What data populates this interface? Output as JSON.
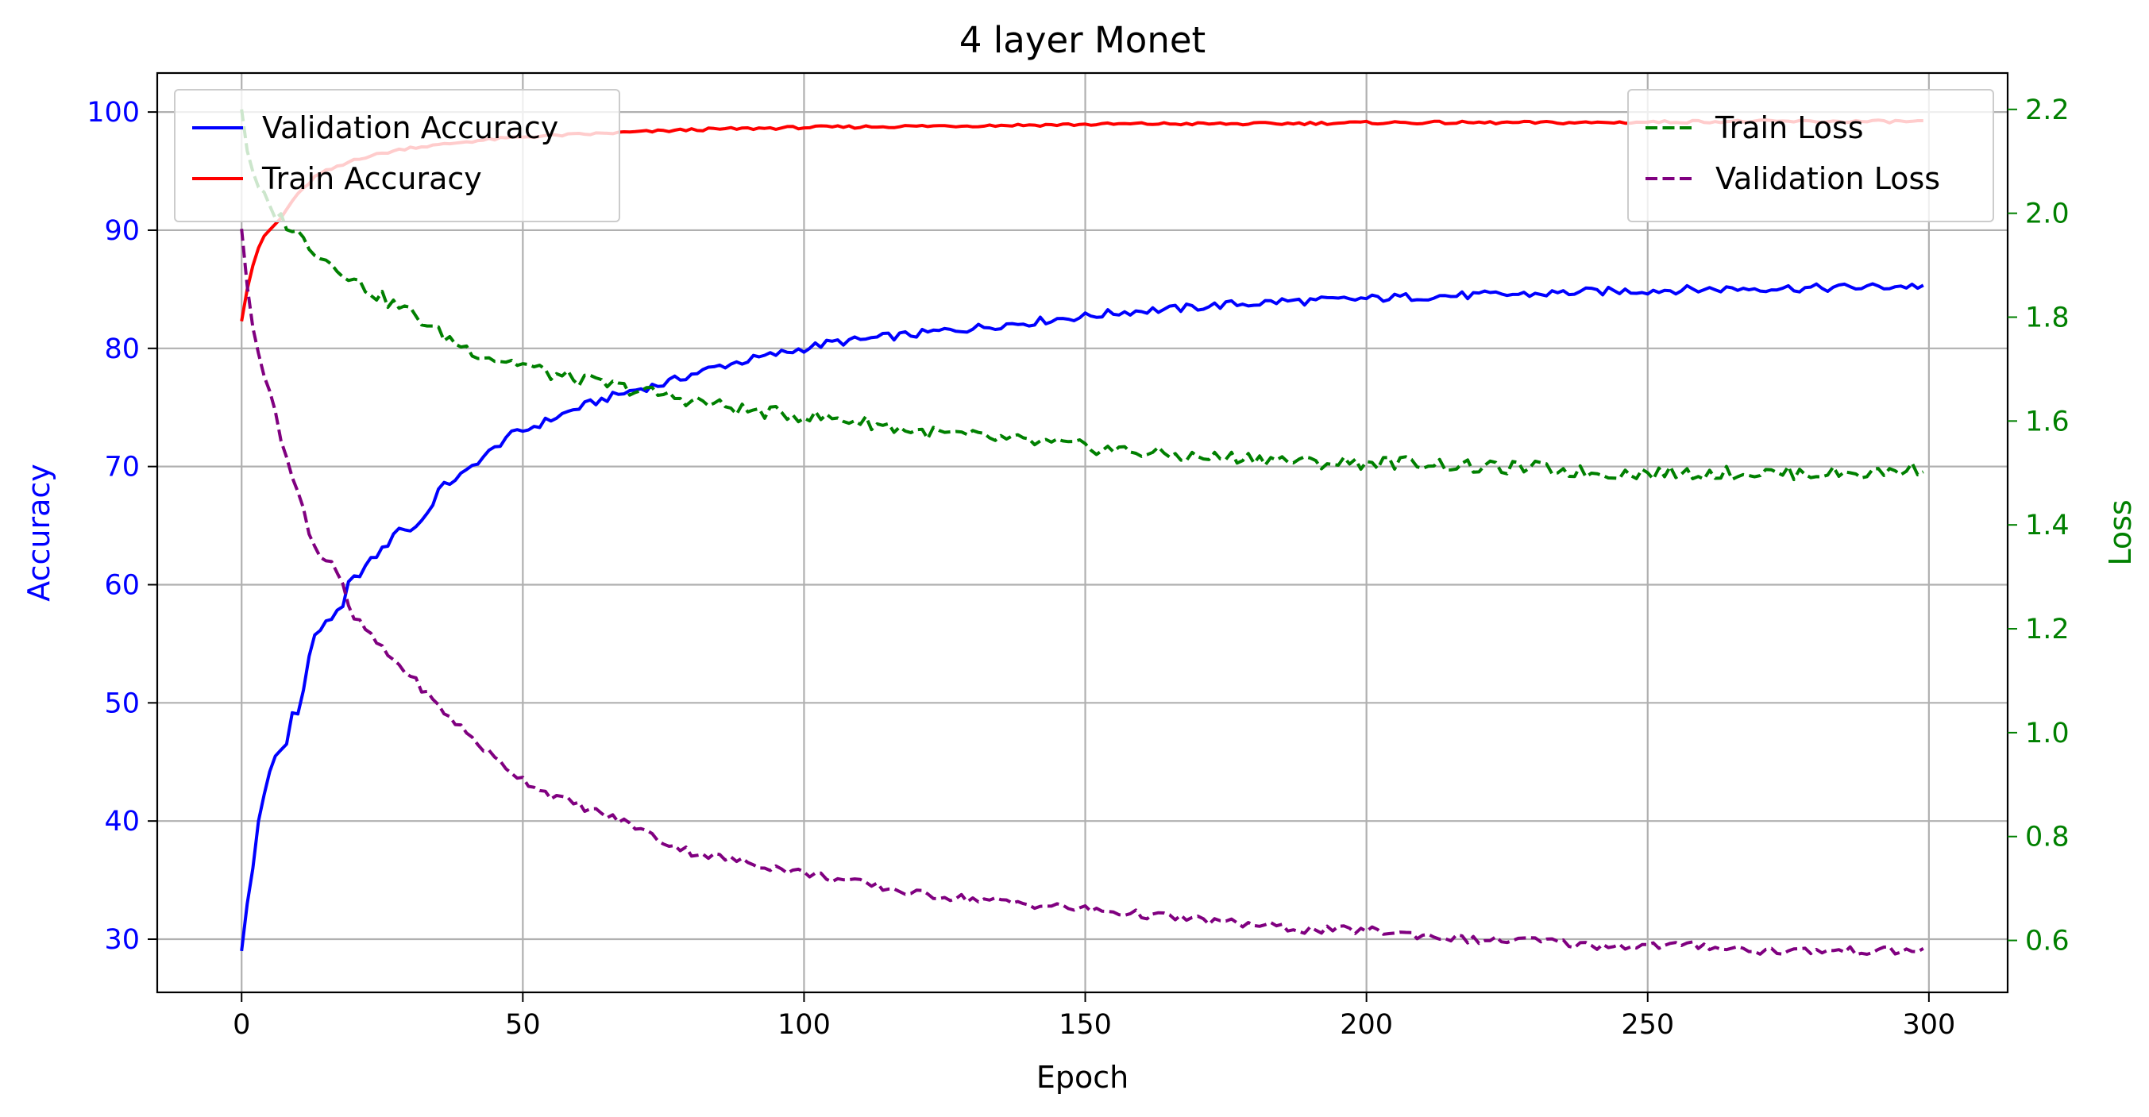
{
  "chart_data": {
    "type": "line",
    "title": "4 layer Monet",
    "xlabel": "Epoch",
    "ylabel_left": "Accuracy",
    "ylabel_right": "Loss",
    "xlim": [
      -15,
      314
    ],
    "ylim_left": [
      25.5,
      103.3
    ],
    "ylim_right": [
      0.5,
      2.27
    ],
    "x_ticks": [
      0,
      50,
      100,
      150,
      200,
      250,
      300
    ],
    "y_ticks_left": [
      30,
      40,
      50,
      60,
      70,
      80,
      90,
      100
    ],
    "y_ticks_right": [
      0.6,
      0.8,
      1.0,
      1.2,
      1.4,
      1.6,
      1.8,
      2.0,
      2.2
    ],
    "x_tick_labels": [
      "0",
      "50",
      "100",
      "150",
      "200",
      "250",
      "300"
    ],
    "y_tick_labels_left": [
      "30",
      "40",
      "50",
      "60",
      "70",
      "80",
      "90",
      "100"
    ],
    "y_tick_labels_right": [
      "0.6",
      "0.8",
      "1.0",
      "1.2",
      "1.4",
      "1.6",
      "1.8",
      "2.0",
      "2.2"
    ],
    "grid": true,
    "legend_left_placement": "upper left",
    "legend_right_placement": "upper right",
    "axis_left_color": "#0000ff",
    "axis_right_color": "#008000",
    "series_keypoints": [
      {
        "name": "Validation Accuracy",
        "axis": "left",
        "color": "#0000ff",
        "style": "solid",
        "points": [
          [
            0,
            29
          ],
          [
            1,
            33
          ],
          [
            2,
            36
          ],
          [
            3,
            40
          ],
          [
            4,
            42
          ],
          [
            5,
            44
          ],
          [
            6,
            45.5
          ],
          [
            8,
            46.5
          ],
          [
            9,
            49.5
          ],
          [
            10,
            49
          ],
          [
            11,
            51
          ],
          [
            12,
            54
          ],
          [
            13,
            55.5
          ],
          [
            15,
            57
          ],
          [
            17,
            57.5
          ],
          [
            18,
            58
          ],
          [
            19,
            60
          ],
          [
            21,
            61
          ],
          [
            23,
            62
          ],
          [
            25,
            63
          ],
          [
            27,
            64
          ],
          [
            28,
            65
          ],
          [
            30,
            64.5
          ],
          [
            33,
            66
          ],
          [
            35,
            68
          ],
          [
            38,
            69
          ],
          [
            40,
            69.5
          ],
          [
            42,
            70.5
          ],
          [
            45,
            71.5
          ],
          [
            47,
            72.5
          ],
          [
            50,
            73
          ],
          [
            55,
            74
          ],
          [
            60,
            75
          ],
          [
            65,
            75.8
          ],
          [
            70,
            76.5
          ],
          [
            75,
            77
          ],
          [
            80,
            77.8
          ],
          [
            85,
            78.5
          ],
          [
            90,
            79
          ],
          [
            95,
            79.5
          ],
          [
            100,
            80
          ],
          [
            105,
            80.5
          ],
          [
            110,
            80.7
          ],
          [
            115,
            81
          ],
          [
            120,
            81.2
          ],
          [
            125,
            81.5
          ],
          [
            130,
            81.7
          ],
          [
            135,
            82
          ],
          [
            140,
            82.2
          ],
          [
            145,
            82.5
          ],
          [
            150,
            82.7
          ],
          [
            155,
            83
          ],
          [
            160,
            83.2
          ],
          [
            165,
            83.3
          ],
          [
            170,
            83.5
          ],
          [
            175,
            83.7
          ],
          [
            180,
            83.8
          ],
          [
            185,
            84
          ],
          [
            190,
            84
          ],
          [
            195,
            84.1
          ],
          [
            200,
            84.2
          ],
          [
            210,
            84.4
          ],
          [
            220,
            84.5
          ],
          [
            230,
            84.6
          ],
          [
            240,
            84.8
          ],
          [
            250,
            84.9
          ],
          [
            260,
            85
          ],
          [
            270,
            85.1
          ],
          [
            280,
            85.1
          ],
          [
            290,
            85.2
          ],
          [
            299,
            85.3
          ]
        ],
        "noise_amplitude": 0.35
      },
      {
        "name": "Train Accuracy",
        "axis": "left",
        "color": "#ff0000",
        "style": "solid",
        "points": [
          [
            0,
            82.3
          ],
          [
            1,
            85
          ],
          [
            2,
            87
          ],
          [
            3,
            88.5
          ],
          [
            4,
            89.5
          ],
          [
            5,
            90
          ],
          [
            7,
            91
          ],
          [
            9,
            92.5
          ],
          [
            11,
            93.5
          ],
          [
            13,
            94.5
          ],
          [
            15,
            95
          ],
          [
            18,
            95.5
          ],
          [
            20,
            96
          ],
          [
            25,
            96.5
          ],
          [
            30,
            97
          ],
          [
            35,
            97.2
          ],
          [
            40,
            97.5
          ],
          [
            45,
            97.7
          ],
          [
            50,
            97.9
          ],
          [
            60,
            98.1
          ],
          [
            70,
            98.3
          ],
          [
            80,
            98.5
          ],
          [
            90,
            98.6
          ],
          [
            100,
            98.7
          ],
          [
            120,
            98.8
          ],
          [
            140,
            98.9
          ],
          [
            160,
            99
          ],
          [
            180,
            99
          ],
          [
            200,
            99.1
          ],
          [
            220,
            99.1
          ],
          [
            240,
            99.1
          ],
          [
            260,
            99.2
          ],
          [
            280,
            99.2
          ],
          [
            299,
            99.2
          ]
        ],
        "noise_amplitude": 0.12
      },
      {
        "name": "Train Loss",
        "axis": "right",
        "color": "#008000",
        "style": "dashed",
        "points": [
          [
            0,
            2.2
          ],
          [
            1,
            2.12
          ],
          [
            2,
            2.08
          ],
          [
            3,
            2.05
          ],
          [
            4,
            2.03
          ],
          [
            5,
            2.01
          ],
          [
            7,
            1.99
          ],
          [
            9,
            1.97
          ],
          [
            11,
            1.95
          ],
          [
            13,
            1.93
          ],
          [
            15,
            1.91
          ],
          [
            18,
            1.89
          ],
          [
            20,
            1.87
          ],
          [
            23,
            1.85
          ],
          [
            26,
            1.83
          ],
          [
            30,
            1.81
          ],
          [
            35,
            1.77
          ],
          [
            40,
            1.74
          ],
          [
            45,
            1.72
          ],
          [
            50,
            1.71
          ],
          [
            55,
            1.69
          ],
          [
            60,
            1.68
          ],
          [
            65,
            1.67
          ],
          [
            70,
            1.66
          ],
          [
            75,
            1.65
          ],
          [
            80,
            1.64
          ],
          [
            90,
            1.62
          ],
          [
            100,
            1.61
          ],
          [
            110,
            1.6
          ],
          [
            120,
            1.58
          ],
          [
            130,
            1.57
          ],
          [
            140,
            1.56
          ],
          [
            150,
            1.55
          ],
          [
            160,
            1.54
          ],
          [
            170,
            1.53
          ],
          [
            180,
            1.53
          ],
          [
            190,
            1.52
          ],
          [
            200,
            1.52
          ],
          [
            210,
            1.52
          ],
          [
            220,
            1.51
          ],
          [
            230,
            1.51
          ],
          [
            240,
            1.5
          ],
          [
            250,
            1.5
          ],
          [
            260,
            1.5
          ],
          [
            270,
            1.5
          ],
          [
            280,
            1.5
          ],
          [
            290,
            1.5
          ],
          [
            299,
            1.51
          ]
        ],
        "noise_amplitude": 0.013
      },
      {
        "name": "Validation Loss",
        "axis": "right",
        "color": "#800080",
        "style": "dashed",
        "points": [
          [
            0,
            1.97
          ],
          [
            1,
            1.86
          ],
          [
            2,
            1.78
          ],
          [
            3,
            1.73
          ],
          [
            4,
            1.69
          ],
          [
            5,
            1.65
          ],
          [
            6,
            1.62
          ],
          [
            7,
            1.57
          ],
          [
            8,
            1.53
          ],
          [
            9,
            1.49
          ],
          [
            10,
            1.46
          ],
          [
            11,
            1.43
          ],
          [
            12,
            1.39
          ],
          [
            13,
            1.36
          ],
          [
            14,
            1.34
          ],
          [
            16,
            1.33
          ],
          [
            17,
            1.31
          ],
          [
            18,
            1.28
          ],
          [
            19,
            1.24
          ],
          [
            20,
            1.22
          ],
          [
            22,
            1.2
          ],
          [
            25,
            1.16
          ],
          [
            28,
            1.13
          ],
          [
            30,
            1.11
          ],
          [
            35,
            1.05
          ],
          [
            40,
            1.0
          ],
          [
            45,
            0.95
          ],
          [
            50,
            0.91
          ],
          [
            55,
            0.88
          ],
          [
            60,
            0.86
          ],
          [
            65,
            0.84
          ],
          [
            70,
            0.82
          ],
          [
            75,
            0.79
          ],
          [
            80,
            0.77
          ],
          [
            85,
            0.76
          ],
          [
            90,
            0.75
          ],
          [
            95,
            0.74
          ],
          [
            100,
            0.73
          ],
          [
            110,
            0.71
          ],
          [
            120,
            0.69
          ],
          [
            130,
            0.68
          ],
          [
            140,
            0.67
          ],
          [
            150,
            0.66
          ],
          [
            160,
            0.65
          ],
          [
            170,
            0.64
          ],
          [
            180,
            0.63
          ],
          [
            190,
            0.62
          ],
          [
            200,
            0.62
          ],
          [
            210,
            0.61
          ],
          [
            220,
            0.6
          ],
          [
            230,
            0.6
          ],
          [
            240,
            0.59
          ],
          [
            250,
            0.59
          ],
          [
            260,
            0.59
          ],
          [
            270,
            0.58
          ],
          [
            280,
            0.58
          ],
          [
            290,
            0.58
          ],
          [
            299,
            0.58
          ]
        ],
        "noise_amplitude": 0.008
      }
    ]
  }
}
